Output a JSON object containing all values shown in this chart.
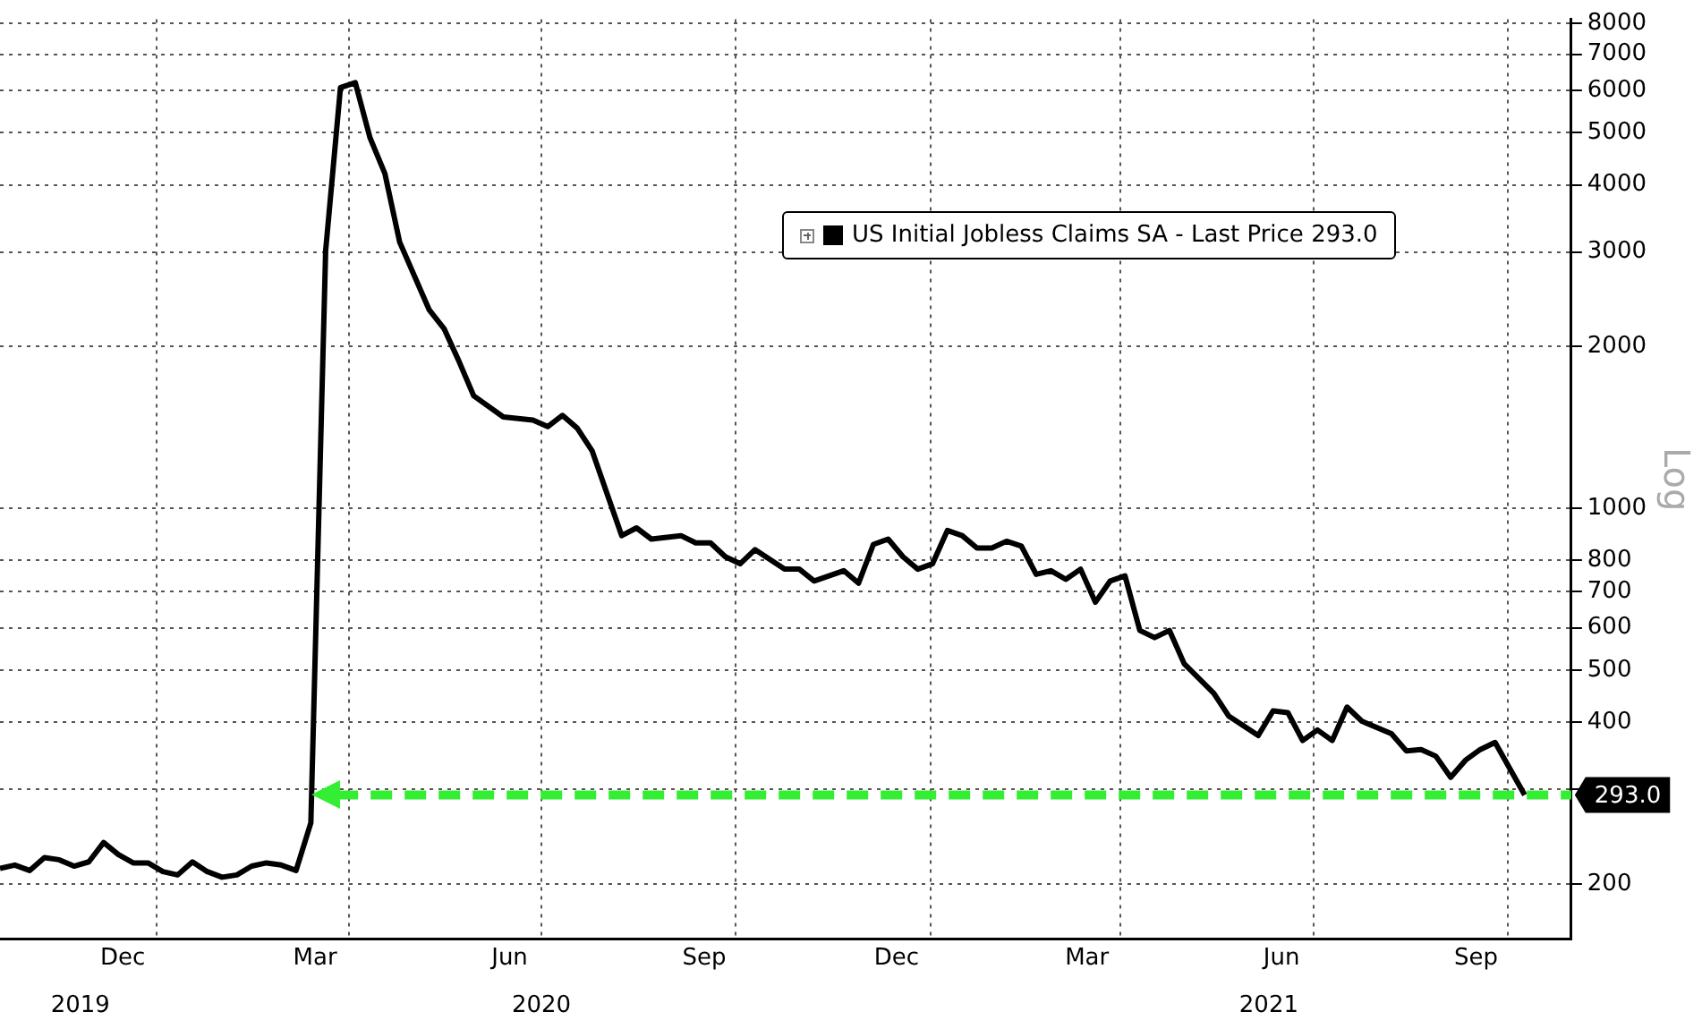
{
  "chart_data": {
    "type": "line",
    "ylabel": "Log",
    "log": true,
    "grid": true,
    "legend": "top",
    "xlim": [
      "2019-10-19",
      "2021-10-31"
    ],
    "xticks": [
      {
        "value": "2019-12-16",
        "label": "Dec"
      },
      {
        "value": "2020-01-01",
        "label": null
      },
      {
        "value": "2020-03-16",
        "label": "Mar"
      },
      {
        "value": "2020-04-01",
        "label": null
      },
      {
        "value": "2020-06-16",
        "label": "Jun"
      },
      {
        "value": "2020-07-01",
        "label": null
      },
      {
        "value": "2020-09-16",
        "label": "Sep"
      },
      {
        "value": "2020-10-01",
        "label": null
      },
      {
        "value": "2020-12-16",
        "label": "Dec"
      },
      {
        "value": "2021-01-01",
        "label": null
      },
      {
        "value": "2021-03-16",
        "label": "Mar"
      },
      {
        "value": "2021-04-01",
        "label": null
      },
      {
        "value": "2021-06-16",
        "label": "Jun"
      },
      {
        "value": "2021-07-01",
        "label": null
      },
      {
        "value": "2021-09-16",
        "label": "Sep"
      },
      {
        "value": "2021-10-01",
        "label": null
      }
    ],
    "x2lim": [
      "2019-10-19",
      "2021-10-31"
    ],
    "x2ticks": [
      {
        "value": "2019-11-26",
        "label": "2019"
      },
      {
        "value": "2020-07-01",
        "label": "2020"
      },
      {
        "value": "2021-06-10",
        "label": "2021"
      }
    ],
    "ylim": [
      158,
      8130
    ],
    "yticks": [
      200,
      {
        "value": 300,
        "label": null
      },
      400,
      500,
      600,
      700,
      800,
      1000,
      2000,
      3000,
      4000,
      5000,
      6000,
      7000,
      8000
    ],
    "ref_lines": [
      {
        "axis": "y",
        "value": 293,
        "label": "293.0",
        "color": "#33ee33",
        "line_style": "dashed"
      }
    ],
    "x": [
      "2019-10-19",
      "2019-10-26",
      "2019-11-02",
      "2019-11-09",
      "2019-11-16",
      "2019-11-23",
      "2019-11-30",
      "2019-12-07",
      "2019-12-14",
      "2019-12-21",
      "2019-12-28",
      "2020-01-04",
      "2020-01-11",
      "2020-01-18",
      "2020-01-25",
      "2020-02-01",
      "2020-02-08",
      "2020-02-15",
      "2020-02-22",
      "2020-02-29",
      "2020-03-07",
      "2020-03-14",
      "2020-03-21",
      "2020-03-28",
      "2020-04-04",
      "2020-04-11",
      "2020-04-18",
      "2020-04-25",
      "2020-05-09",
      "2020-05-16",
      "2020-05-23",
      "2020-05-30",
      "2020-06-13",
      "2020-06-27",
      "2020-07-04",
      "2020-07-11",
      "2020-07-18",
      "2020-07-25",
      "2020-08-08",
      "2020-08-15",
      "2020-08-22",
      "2020-09-05",
      "2020-09-12",
      "2020-09-19",
      "2020-09-26",
      "2020-10-03",
      "2020-10-10",
      "2020-10-24",
      "2020-10-31",
      "2020-11-07",
      "2020-11-14",
      "2020-11-21",
      "2020-11-28",
      "2020-12-05",
      "2020-12-12",
      "2020-12-19",
      "2020-12-26",
      "2021-01-02",
      "2021-01-09",
      "2021-01-16",
      "2021-01-23",
      "2021-01-30",
      "2021-02-06",
      "2021-02-13",
      "2021-02-20",
      "2021-02-27",
      "2021-03-06",
      "2021-03-13",
      "2021-03-20",
      "2021-03-27",
      "2021-04-03",
      "2021-04-10",
      "2021-04-17",
      "2021-04-24",
      "2021-05-01",
      "2021-05-15",
      "2021-05-22",
      "2021-06-05",
      "2021-06-12",
      "2021-06-19",
      "2021-06-26",
      "2021-07-03",
      "2021-07-10",
      "2021-07-17",
      "2021-07-24",
      "2021-08-07",
      "2021-08-14",
      "2021-08-21",
      "2021-08-28",
      "2021-09-04",
      "2021-09-11",
      "2021-09-18",
      "2021-09-25",
      "2021-10-09"
    ],
    "series": [
      {
        "name": "US Initial Jobless Claims SA - Last Price 293.0",
        "color": "#000000",
        "values": [
          214,
          217,
          212,
          224,
          222,
          216,
          220,
          239,
          227,
          219,
          219,
          211,
          208,
          220,
          211,
          206,
          208,
          216,
          219,
          217,
          212,
          260,
          3020,
          6070,
          6200,
          4890,
          4200,
          3130,
          2340,
          2160,
          1880,
          1620,
          1480,
          1460,
          1420,
          1490,
          1410,
          1280,
          890,
          920,
          877,
          890,
          863,
          863,
          813,
          789,
          838,
          771,
          771,
          733,
          749,
          766,
          726,
          857,
          877,
          813,
          771,
          789,
          910,
          890,
          844,
          844,
          869,
          851,
          754,
          766,
          738,
          771,
          669,
          733,
          749,
          593,
          575,
          593,
          514,
          453,
          411,
          378,
          420,
          417,
          370,
          387,
          370,
          427,
          402,
          381,
          354,
          356,
          346,
          316,
          340,
          356,
          367,
          293
        ]
      }
    ]
  }
}
